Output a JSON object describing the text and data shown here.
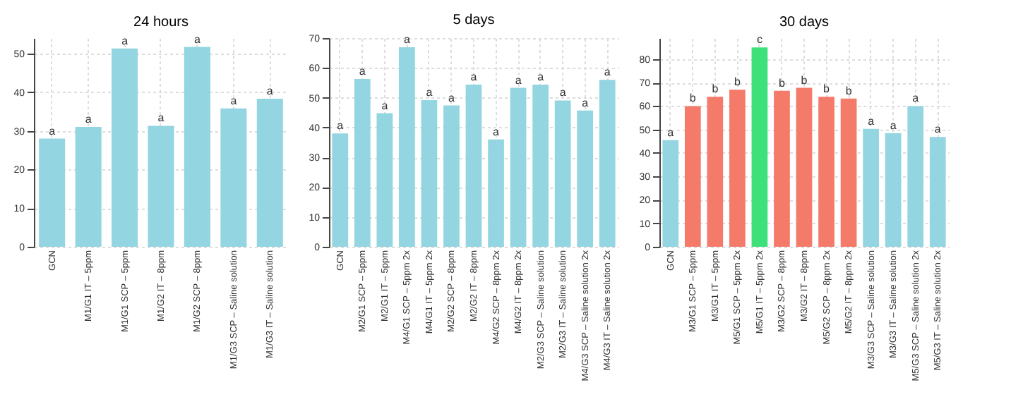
{
  "chart_data": [
    {
      "type": "bar",
      "title": "24 hours",
      "categories": [
        "GCN",
        "M1/G1 IT – 5ppm",
        "M1/G1 SCP – 5ppm",
        "M1/G2 IT – 8ppm",
        "M1/G2 SCP – 8ppm",
        "M1/G3 SCP – Saline solution",
        "M1/G3 IT – Saline solution"
      ],
      "values": [
        28,
        31,
        51.3,
        31.3,
        51.7,
        35.8,
        38.3
      ],
      "colors": [
        "#93d5e0",
        "#93d5e0",
        "#93d5e0",
        "#93d5e0",
        "#93d5e0",
        "#93d5e0",
        "#93d5e0"
      ],
      "ylim": [
        0,
        54
      ],
      "yticks": [
        0,
        10,
        20,
        30,
        40,
        50
      ],
      "grid": true,
      "annotations": [
        {
          "text": "a",
          "x": "GCN",
          "y": 28
        },
        {
          "text": "a",
          "x": "M1/G1 IT – 5ppm",
          "y": 31
        },
        {
          "text": "a",
          "x": "M1/G1 SCP – 5ppm",
          "y": 51.3
        },
        {
          "text": "a",
          "x": "M1/G2 IT – 8ppm",
          "y": 31.3
        },
        {
          "text": "a",
          "x": "M1/G2 SCP – 8ppm",
          "y": 51.7
        },
        {
          "text": "a",
          "x": "M1/G3 SCP – Saline solution",
          "y": 35.8
        },
        {
          "text": "a",
          "x": "M1/G3 IT – Saline solution",
          "y": 38.3
        }
      ]
    },
    {
      "type": "bar",
      "title": "5 days",
      "categories": [
        "GCN",
        "M2/G1 SCP – 5ppm",
        "M2/G1 IT – 5ppm",
        "M4/G1 SCP – 5ppm 2x",
        "M4/G1 IT – 5ppm 2x",
        "M2/G2 SCP – 8ppm",
        "M2/G2 IT – 8ppm",
        "M4/G2 SCP – 8ppm 2x",
        "M4/G2 IT – 8ppm 2x",
        "M2/G3 SCP – Saline solution",
        "M2/G3 IT – Saline solution",
        "M4/G3 SCP – Saline solution 2x",
        "M4/G3 IT – Saline solution 2x"
      ],
      "values": [
        38,
        56.3,
        44.8,
        66.9,
        49.2,
        47.4,
        54.4,
        36,
        53.3,
        54.4,
        49.1,
        45.7,
        56
      ],
      "colors": [
        "#93d5e0",
        "#93d5e0",
        "#93d5e0",
        "#93d5e0",
        "#93d5e0",
        "#93d5e0",
        "#93d5e0",
        "#93d5e0",
        "#93d5e0",
        "#93d5e0",
        "#93d5e0",
        "#93d5e0",
        "#93d5e0"
      ],
      "ylim": [
        0,
        70
      ],
      "yticks": [
        0,
        10,
        20,
        30,
        40,
        50,
        60,
        70
      ],
      "grid": true,
      "annotations": [
        {
          "text": "a",
          "x": "GCN",
          "y": 38
        },
        {
          "text": "a",
          "x": "M2/G1 SCP – 5ppm",
          "y": 56.3
        },
        {
          "text": "a",
          "x": "M2/G1 IT – 5ppm",
          "y": 44.8
        },
        {
          "text": "a",
          "x": "M4/G1 SCP – 5ppm 2x",
          "y": 66.9
        },
        {
          "text": "a",
          "x": "M4/G1 IT – 5ppm 2x",
          "y": 49.2
        },
        {
          "text": "a",
          "x": "M2/G2 SCP – 8ppm",
          "y": 47.4
        },
        {
          "text": "a",
          "x": "M2/G2 IT – 8ppm",
          "y": 54.4
        },
        {
          "text": "a",
          "x": "M4/G2 SCP – 8ppm 2x",
          "y": 36
        },
        {
          "text": "a",
          "x": "M4/G2 IT – 8ppm 2x",
          "y": 53.3
        },
        {
          "text": "a",
          "x": "M2/G3 SCP – Saline solution",
          "y": 54.4
        },
        {
          "text": "a",
          "x": "M2/G3 IT – Saline solution",
          "y": 49.1
        },
        {
          "text": "a",
          "x": "M4/G3 SCP – Saline solution 2x",
          "y": 45.7
        },
        {
          "text": "a",
          "x": "M4/G3 IT – Saline solution 2x",
          "y": 56
        }
      ]
    },
    {
      "type": "bar",
      "title": "30 days",
      "categories": [
        "GCN",
        "M3/G1 SCP – 5ppm",
        "M3/G1 IT – 5ppm",
        "M5/G1 SCP – 5ppm 2x",
        "M5/G1 IT – 5ppm 2x",
        "M3/G2 SCP – 8ppm",
        "M3/G2 IT – 8ppm",
        "M5/G2 SCP – 8ppm 2x",
        "M5/G2 IT – 8ppm 2x",
        "M3/G3 SCP – Saline solution",
        "M3/G3 IT – Saline solution",
        "M5/G3 SCP – Saline solution 2x",
        "M5/G3 IT – Saline solution 2x"
      ],
      "values": [
        45.5,
        60,
        64,
        67,
        85,
        66.5,
        67.8,
        64,
        63.2,
        50.3,
        48.5,
        60,
        46.8
      ],
      "colors": [
        "#93d5e0",
        "#f47a6a",
        "#f47a6a",
        "#f47a6a",
        "#3ee07a",
        "#f47a6a",
        "#f47a6a",
        "#f47a6a",
        "#f47a6a",
        "#93d5e0",
        "#93d5e0",
        "#93d5e0",
        "#93d5e0"
      ],
      "ylim": [
        0,
        89
      ],
      "yticks": [
        0,
        10,
        20,
        30,
        40,
        50,
        60,
        70,
        80
      ],
      "grid": true,
      "annotations": [
        {
          "text": "a",
          "x": "GCN",
          "y": 45.5
        },
        {
          "text": "b",
          "x": "M3/G1 SCP – 5ppm",
          "y": 60
        },
        {
          "text": "b",
          "x": "M3/G1 IT – 5ppm",
          "y": 64
        },
        {
          "text": "b",
          "x": "M5/G1 SCP – 5ppm 2x",
          "y": 67
        },
        {
          "text": "c",
          "x": "M5/G1 IT – 5ppm 2x",
          "y": 85
        },
        {
          "text": "b",
          "x": "M3/G2 SCP – 8ppm",
          "y": 66.5
        },
        {
          "text": "b",
          "x": "M3/G2 IT – 8ppm",
          "y": 67.8
        },
        {
          "text": "b",
          "x": "M5/G2 SCP – 8ppm 2x",
          "y": 64
        },
        {
          "text": "b",
          "x": "M5/G2 IT – 8ppm 2x",
          "y": 63.2
        },
        {
          "text": "a",
          "x": "M3/G3 SCP – Saline solution",
          "y": 50.3
        },
        {
          "text": "a",
          "x": "M3/G3 IT – Saline solution",
          "y": 48.5
        },
        {
          "text": "a",
          "x": "M5/G3 SCP – Saline solution 2x",
          "y": 60
        },
        {
          "text": "a",
          "x": "M5/G3 IT – Saline solution 2x",
          "y": 46.8
        }
      ]
    }
  ]
}
